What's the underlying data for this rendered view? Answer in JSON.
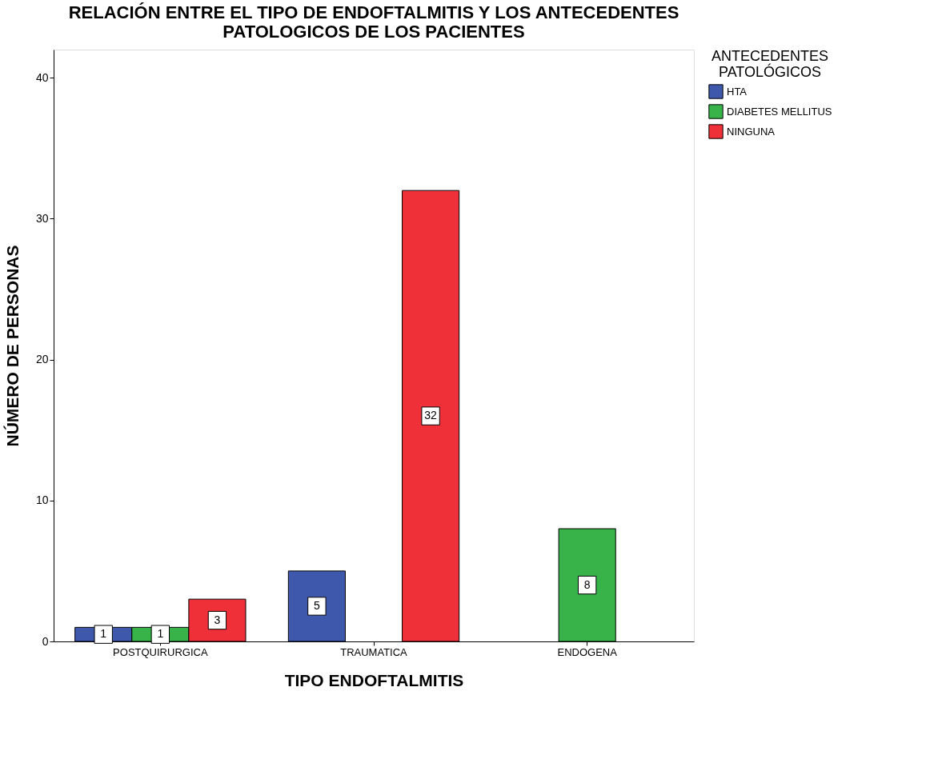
{
  "chart_data": {
    "type": "bar",
    "title": "RELACIÓN ENTRE EL TIPO DE ENDOFTALMITIS Y LOS ANTECEDENTES PATOLOGICOS DE LOS PACIENTES",
    "xlabel": "TIPO ENDOFTALMITIS",
    "ylabel": "NÚMERO DE PERSONAS",
    "legend_title": "ANTECEDENTES PATOLÓGICOS",
    "categories": [
      "POSTQUIRURGICA",
      "TRAUMATICA",
      "ENDOGENA"
    ],
    "series": [
      {
        "name": "HTA",
        "color": "#3e58ac",
        "values": [
          1,
          5,
          null
        ]
      },
      {
        "name": "DIABETES MELLITUS",
        "color": "#38b34a",
        "values": [
          1,
          null,
          8
        ]
      },
      {
        "name": "NINGUNA",
        "color": "#ef3038",
        "values": [
          3,
          32,
          null
        ]
      }
    ],
    "ylim": [
      0,
      42
    ],
    "yticks": [
      0,
      10,
      20,
      30,
      40
    ],
    "data_labels": true,
    "legend": "top right",
    "grid": false
  }
}
